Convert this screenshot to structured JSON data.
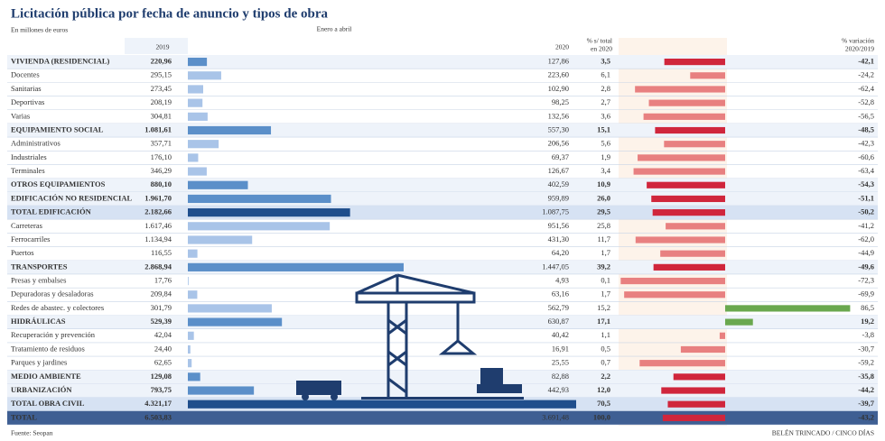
{
  "header": {
    "title": "Licitación pública por fecha de anuncio y tipos de obra",
    "subtitle": "En millones de euros",
    "col_2019": "2019",
    "period": "Enero a abril",
    "col_2020": "2020",
    "col_share": [
      "% s/ total",
      "en 2020"
    ],
    "col_change": [
      "% variación",
      "2020/2019"
    ]
  },
  "rows": [
    {
      "name": "VIVIENDA (RESIDENCIAL)",
      "v2019": "220,96",
      "v2020": {
        "value": 127.86,
        "label": "127,86"
      },
      "share": "3,5",
      "change": {
        "value": -42.1,
        "label": "-42,1"
      },
      "level": "section"
    },
    {
      "name": "Docentes",
      "v2019": "295,15",
      "v2020": {
        "value": 223.6,
        "label": "223,60"
      },
      "share": "6,1",
      "change": {
        "value": -24.2,
        "label": "-24,2"
      },
      "level": "sub"
    },
    {
      "name": "Sanitarias",
      "v2019": "273,45",
      "v2020": {
        "value": 102.9,
        "label": "102,90"
      },
      "share": "2,8",
      "change": {
        "value": -62.4,
        "label": "-62,4"
      },
      "level": "sub"
    },
    {
      "name": "Deportivas",
      "v2019": "208,19",
      "v2020": {
        "value": 98.25,
        "label": "98,25"
      },
      "share": "2,7",
      "change": {
        "value": -52.8,
        "label": "-52,8"
      },
      "level": "sub"
    },
    {
      "name": "Varias",
      "v2019": "304,81",
      "v2020": {
        "value": 132.56,
        "label": "132,56"
      },
      "share": "3,6",
      "change": {
        "value": -56.5,
        "label": "-56,5"
      },
      "level": "sub"
    },
    {
      "name": "EQUIPAMIENTO SOCIAL",
      "v2019": "1.081,61",
      "v2020": {
        "value": 557.3,
        "label": "557,30"
      },
      "share": "15,1",
      "change": {
        "value": -48.5,
        "label": "-48,5"
      },
      "level": "section"
    },
    {
      "name": "Administrativos",
      "v2019": "357,71",
      "v2020": {
        "value": 206.56,
        "label": "206,56"
      },
      "share": "5,6",
      "change": {
        "value": -42.3,
        "label": "-42,3"
      },
      "level": "sub"
    },
    {
      "name": "Industriales",
      "v2019": "176,10",
      "v2020": {
        "value": 69.37,
        "label": "69,37"
      },
      "share": "1,9",
      "change": {
        "value": -60.6,
        "label": "-60,6"
      },
      "level": "sub"
    },
    {
      "name": "Terminales",
      "v2019": "346,29",
      "v2020": {
        "value": 126.67,
        "label": "126,67"
      },
      "share": "3,4",
      "change": {
        "value": -63.4,
        "label": "-63,4"
      },
      "level": "sub"
    },
    {
      "name": "OTROS EQUIPAMIENTOS",
      "v2019": "880,10",
      "v2020": {
        "value": 402.59,
        "label": "402,59"
      },
      "share": "10,9",
      "change": {
        "value": -54.3,
        "label": "-54,3"
      },
      "level": "section"
    },
    {
      "name": "EDIFICACIÓN NO RESIDENCIAL",
      "v2019": "1.961,70",
      "v2020": {
        "value": 959.89,
        "label": "959,89"
      },
      "share": "26,0",
      "change": {
        "value": -51.1,
        "label": "-51,1"
      },
      "level": "section"
    },
    {
      "name": "TOTAL EDIFICACIÓN",
      "v2019": "2.182,66",
      "v2020": {
        "value": 1087.75,
        "label": "1.087,75"
      },
      "share": "29,5",
      "change": {
        "value": -50.2,
        "label": "-50,2"
      },
      "level": "total"
    },
    {
      "name": "Carreteras",
      "v2019": "1.617,46",
      "v2020": {
        "value": 951.56,
        "label": "951,56"
      },
      "share": "25,8",
      "change": {
        "value": -41.2,
        "label": "-41,2"
      },
      "level": "sub"
    },
    {
      "name": "Ferrocarriles",
      "v2019": "1.134,94",
      "v2020": {
        "value": 431.3,
        "label": "431,30"
      },
      "share": "11,7",
      "change": {
        "value": -62.0,
        "label": "-62,0"
      },
      "level": "sub"
    },
    {
      "name": "Puertos",
      "v2019": "116,55",
      "v2020": {
        "value": 64.2,
        "label": "64,20"
      },
      "share": "1,7",
      "change": {
        "value": -44.9,
        "label": "-44,9"
      },
      "level": "sub"
    },
    {
      "name": "TRANSPORTES",
      "v2019": "2.868,94",
      "v2020": {
        "value": 1447.05,
        "label": "1.447,05"
      },
      "share": "39,2",
      "change": {
        "value": -49.6,
        "label": "-49,6"
      },
      "level": "section"
    },
    {
      "name": "Presas y embalses",
      "v2019": "17,76",
      "v2020": {
        "value": 4.93,
        "label": "4,93"
      },
      "share": "0,1",
      "change": {
        "value": -72.3,
        "label": "-72,3"
      },
      "level": "sub"
    },
    {
      "name": "Depuradoras y desaladoras",
      "v2019": "209,84",
      "v2020": {
        "value": 63.16,
        "label": "63,16"
      },
      "share": "1,7",
      "change": {
        "value": -69.9,
        "label": "-69,9"
      },
      "level": "sub"
    },
    {
      "name": "Redes de abastec. y colectores",
      "v2019": "301,79",
      "v2020": {
        "value": 562.79,
        "label": "562,79"
      },
      "share": "15,2",
      "change": {
        "value": 86.5,
        "label": "86,5"
      },
      "level": "sub"
    },
    {
      "name": "HIDRÁULICAS",
      "v2019": "529,39",
      "v2020": {
        "value": 630.87,
        "label": "630,87"
      },
      "share": "17,1",
      "change": {
        "value": 19.2,
        "label": "19,2"
      },
      "level": "section"
    },
    {
      "name": "Recuperación y prevención",
      "v2019": "42,04",
      "v2020": {
        "value": 40.42,
        "label": "40,42"
      },
      "share": "1,1",
      "change": {
        "value": -3.8,
        "label": "-3,8"
      },
      "level": "sub"
    },
    {
      "name": "Tratamiento de residuos",
      "v2019": "24,40",
      "v2020": {
        "value": 16.91,
        "label": "16,91"
      },
      "share": "0,5",
      "change": {
        "value": -30.7,
        "label": "-30,7"
      },
      "level": "sub"
    },
    {
      "name": "Parques y jardines",
      "v2019": "62,65",
      "v2020": {
        "value": 25.55,
        "label": "25,55"
      },
      "share": "0,7",
      "change": {
        "value": -59.2,
        "label": "-59,2"
      },
      "level": "sub"
    },
    {
      "name": "MEDIO AMBIENTE",
      "v2019": "129,08",
      "v2020": {
        "value": 82.88,
        "label": "82,88"
      },
      "share": "2,2",
      "change": {
        "value": -35.8,
        "label": "-35,8"
      },
      "level": "section"
    },
    {
      "name": "URBANIZACIÓN",
      "v2019": "793,75",
      "v2020": {
        "value": 442.93,
        "label": "442,93"
      },
      "share": "12,0",
      "change": {
        "value": -44.2,
        "label": "-44,2"
      },
      "level": "section"
    },
    {
      "name": "TOTAL OBRA CIVIL",
      "v2019": "4.321,17",
      "v2020": {
        "value": 2603.73,
        "label": "2.603,73"
      },
      "share": "70,5",
      "change": {
        "value": -39.7,
        "label": "-39,7"
      },
      "level": "total"
    },
    {
      "name": "TOTAL",
      "v2019": "6.503,83",
      "v2020": {
        "value": 3691.48,
        "label": "3.691,48"
      },
      "share": "100,0",
      "change": {
        "value": -43.2,
        "label": "-43,2"
      },
      "level": "grand"
    }
  ],
  "footer": {
    "source": "Fuente: Seopan",
    "credit": "BELÉN TRINCADO / CINCO DÍAS"
  }
}
